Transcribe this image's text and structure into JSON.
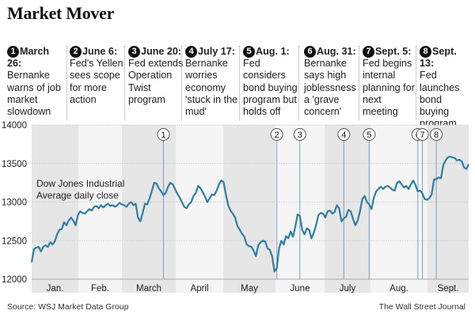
{
  "title": "Market Mover",
  "events": [
    {
      "n": "1",
      "date": "March 26:",
      "text": "Bernanke warns of job market slowdown"
    },
    {
      "n": "2",
      "date": "June 6:",
      "text": "Fed's Yellen sees scope for more action"
    },
    {
      "n": "3",
      "date": "June 20:",
      "text": "Fed extends Operation Twist program"
    },
    {
      "n": "4",
      "date": "July 17:",
      "text": "Bernanke worries economy 'stuck in the mud'"
    },
    {
      "n": "5",
      "date": "Aug. 1:",
      "text": "Fed considers bond buying program but holds off"
    },
    {
      "n": "6",
      "date": "Aug. 31:",
      "text": "Bernanke says high joblessness a 'grave concern'"
    },
    {
      "n": "7",
      "date": "Sept. 5:",
      "text": "Fed begins internal planning for next meeting"
    },
    {
      "n": "8",
      "date": "Sept. 13:",
      "text": "Fed launches bond buying program"
    }
  ],
  "source": "Source: WSJ Market Data Group",
  "publisher": "The Wall Street Journal",
  "chart_data": {
    "type": "line",
    "series_label": "Dow Jones Industrial Average daily close",
    "ylim": [
      12000,
      14000
    ],
    "yticks": [
      "14000",
      "13500",
      "13000",
      "12500",
      "12000"
    ],
    "months": [
      "Jan.",
      "Feb.",
      "March",
      "April",
      "May",
      "June",
      "July",
      "Aug.",
      "Sept."
    ],
    "line_color": "#2f7da3",
    "marker_color": "#7a9fc0",
    "x_unit": "trading day index (0 = first trading day of January)",
    "markers": [
      {
        "label": "1",
        "day": 57
      },
      {
        "label": "2",
        "day": 106
      },
      {
        "label": "3",
        "day": 116
      },
      {
        "label": "4",
        "day": 135
      },
      {
        "label": "5",
        "day": 146
      },
      {
        "label": "6",
        "day": 167
      },
      {
        "label": "7",
        "day": 169
      },
      {
        "label": "8",
        "day": 175
      }
    ],
    "values": [
      12220,
      12390,
      12410,
      12420,
      12360,
      12420,
      12440,
      12420,
      12480,
      12450,
      12490,
      12580,
      12640,
      12650,
      12740,
      12700,
      12760,
      12800,
      12760,
      12700,
      12830,
      12880,
      12860,
      12850,
      12880,
      12910,
      12890,
      12940,
      12950,
      12920,
      12960,
      12930,
      12960,
      12980,
      12950,
      12960,
      12940,
      12960,
      12990,
      12970,
      12960,
      12940,
      12980,
      13000,
      12960,
      12980,
      12800,
      12750,
      12860,
      12980,
      12970,
      13050,
      13150,
      13250,
      13240,
      13180,
      13140,
      13090,
      13120,
      13200,
      13250,
      13230,
      13170,
      13110,
      13060,
      13000,
      12940,
      12920,
      12970,
      13000,
      13080,
      13120,
      13210,
      13180,
      13130,
      13070,
      13000,
      13050,
      13100,
      13090,
      13150,
      13230,
      13280,
      13260,
      13100,
      12960,
      12890,
      12850,
      12800,
      12690,
      12640,
      12590,
      12550,
      12450,
      12430,
      12420,
      12370,
      12300,
      12440,
      12480,
      12500,
      12490,
      12400,
      12380,
      12300,
      12100,
      12140,
      12400,
      12500,
      12450,
      12560,
      12530,
      12620,
      12550,
      12680,
      12840,
      12820,
      12640,
      12580,
      12660,
      12640,
      12530,
      12600,
      12700,
      12830,
      12860,
      12850,
      12800,
      12880,
      12890,
      12850,
      12870,
      12960,
      12920,
      12750,
      12790,
      12810,
      12900,
      12880,
      12780,
      12700,
      12760,
      12880,
      13040,
      13080,
      13000,
      12970,
      12910,
      13060,
      13140,
      13170,
      13200,
      13170,
      13200,
      13210,
      13190,
      13160,
      13150,
      13250,
      13270,
      13230,
      13190,
      13210,
      13170,
      13230,
      13280,
      13220,
      13140,
      13150,
      13110,
      13040,
      13030,
      13050,
      13100,
      13290,
      13300,
      13320,
      13310,
      13480,
      13540,
      13580,
      13590,
      13580,
      13570,
      13540,
      13550,
      13530,
      13450,
      13430,
      13490
    ]
  }
}
